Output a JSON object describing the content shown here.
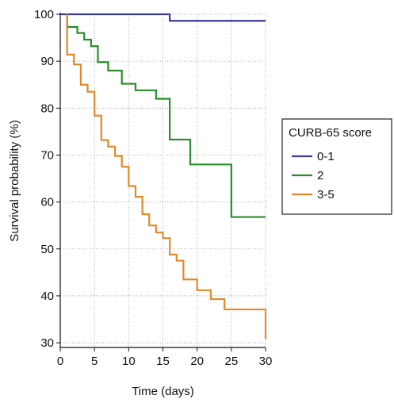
{
  "chart_data": {
    "type": "line",
    "step": true,
    "xlabel": "Time (days)",
    "ylabel": "Survival probability (%)",
    "xlim": [
      0,
      30
    ],
    "ylim": [
      29,
      100
    ],
    "xticks": [
      0,
      5,
      10,
      15,
      20,
      25,
      30
    ],
    "yticks": [
      30,
      40,
      50,
      60,
      70,
      80,
      90,
      100
    ],
    "grid": true,
    "legend": {
      "title": "CURB-65 score",
      "placement": "right"
    },
    "series": [
      {
        "name": "0-1",
        "color": "#3c3c9a",
        "points": [
          [
            0,
            100
          ],
          [
            16,
            100
          ],
          [
            16,
            98.6
          ],
          [
            30,
            98.6
          ]
        ]
      },
      {
        "name": "2",
        "color": "#2a8c2a",
        "points": [
          [
            1,
            100
          ],
          [
            1,
            97.3
          ],
          [
            2.5,
            97.3
          ],
          [
            2.5,
            96.0
          ],
          [
            3.5,
            96.0
          ],
          [
            3.5,
            94.6
          ],
          [
            4.5,
            94.6
          ],
          [
            4.5,
            93.2
          ],
          [
            5.5,
            93.2
          ],
          [
            5.5,
            89.8
          ],
          [
            7,
            89.8
          ],
          [
            7,
            88.0
          ],
          [
            9,
            88.0
          ],
          [
            9,
            85.2
          ],
          [
            11,
            85.2
          ],
          [
            11,
            83.8
          ],
          [
            14,
            83.8
          ],
          [
            14,
            82.0
          ],
          [
            16,
            82.0
          ],
          [
            16,
            73.3
          ],
          [
            19,
            73.3
          ],
          [
            19,
            68.0
          ],
          [
            25,
            68.0
          ],
          [
            25,
            56.8
          ],
          [
            30,
            56.8
          ]
        ]
      },
      {
        "name": "3-5",
        "color": "#e08a2a",
        "points": [
          [
            1,
            100
          ],
          [
            1,
            91.4
          ],
          [
            2,
            91.4
          ],
          [
            2,
            89.3
          ],
          [
            3,
            89.3
          ],
          [
            3,
            85.0
          ],
          [
            4,
            85.0
          ],
          [
            4,
            83.5
          ],
          [
            5,
            83.5
          ],
          [
            5,
            78.4
          ],
          [
            6,
            78.4
          ],
          [
            6,
            73.2
          ],
          [
            7,
            73.2
          ],
          [
            7,
            71.8
          ],
          [
            8,
            71.8
          ],
          [
            8,
            69.8
          ],
          [
            9,
            69.8
          ],
          [
            9,
            67.5
          ],
          [
            10,
            67.5
          ],
          [
            10,
            63.4
          ],
          [
            11,
            63.4
          ],
          [
            11,
            61.1
          ],
          [
            12,
            61.1
          ],
          [
            12,
            57.4
          ],
          [
            13,
            57.4
          ],
          [
            13,
            55.0
          ],
          [
            14,
            55.0
          ],
          [
            14,
            53.5
          ],
          [
            15,
            53.5
          ],
          [
            15,
            52.3
          ],
          [
            16,
            52.3
          ],
          [
            16,
            48.8
          ],
          [
            17,
            48.8
          ],
          [
            17,
            47.5
          ],
          [
            18,
            47.5
          ],
          [
            18,
            43.5
          ],
          [
            20,
            43.5
          ],
          [
            20,
            41.2
          ],
          [
            22,
            41.2
          ],
          [
            22,
            39.3
          ],
          [
            24,
            39.3
          ],
          [
            24,
            37.1
          ],
          [
            30,
            37.1
          ],
          [
            30,
            30.8
          ]
        ]
      }
    ]
  }
}
